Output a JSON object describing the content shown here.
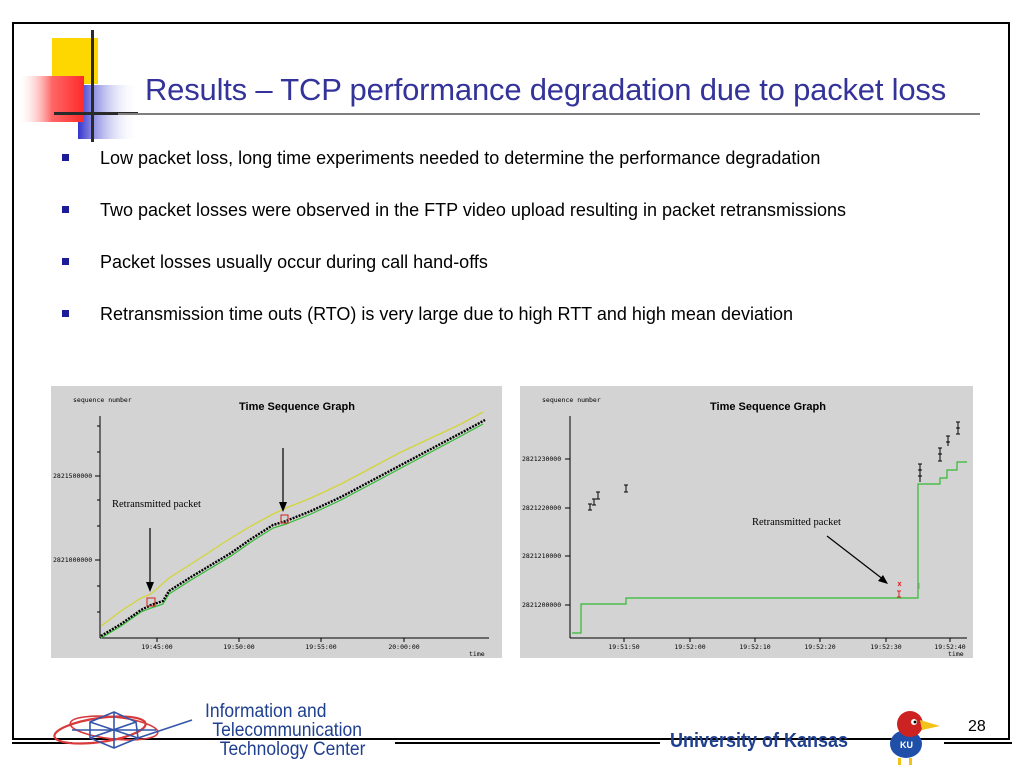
{
  "slide": {
    "title": "Results – TCP performance degradation due to packet loss",
    "bullets": [
      "Low packet loss, long time experiments needed to determine the performance degradation",
      "Two packet losses were observed in the FTP video upload resulting in packet retransmissions",
      "Packet losses usually occur during call hand-offs",
      "Retransmission time outs (RTO) is very large due to high RTT and high mean deviation"
    ],
    "page_number": "28"
  },
  "graph_left": {
    "title": "Time Sequence Graph",
    "ylabel": "sequence number",
    "xlabel": "time",
    "yticks": [
      "2821500000",
      "2821000000"
    ],
    "xticks": [
      "19:45:00",
      "19:50:00",
      "19:55:00",
      "20:00:00"
    ],
    "annotation": "Retransmitted packet"
  },
  "graph_right": {
    "title": "Time Sequence Graph",
    "ylabel": "sequence number",
    "xlabel": "time",
    "yticks": [
      "2821230000",
      "2821220000",
      "2821210000",
      "2821200000"
    ],
    "xticks": [
      "19:51:50",
      "19:52:00",
      "19:52:10",
      "19:52:20",
      "19:52:30",
      "19:52:40"
    ],
    "annotation": "Retransmitted packet"
  },
  "footer": {
    "itc_lines": [
      "Information and",
      "Telecommunication",
      "Technology Center"
    ],
    "university": "University of Kansas",
    "mascot_text": "KU"
  },
  "colors": {
    "title": "#33339a",
    "bullet": "#1c1c99",
    "deco_yellow": "#ffd700",
    "deco_red": "#ff3333",
    "deco_blue": "#3333cc",
    "graph_bg": "#d3d3d3",
    "ack_line": "#33bb33",
    "window_line": "#cccc33"
  },
  "icons": [
    "deco-squares-icon",
    "itc-logo-icon",
    "jayhawk-icon",
    "arrow-icon"
  ]
}
